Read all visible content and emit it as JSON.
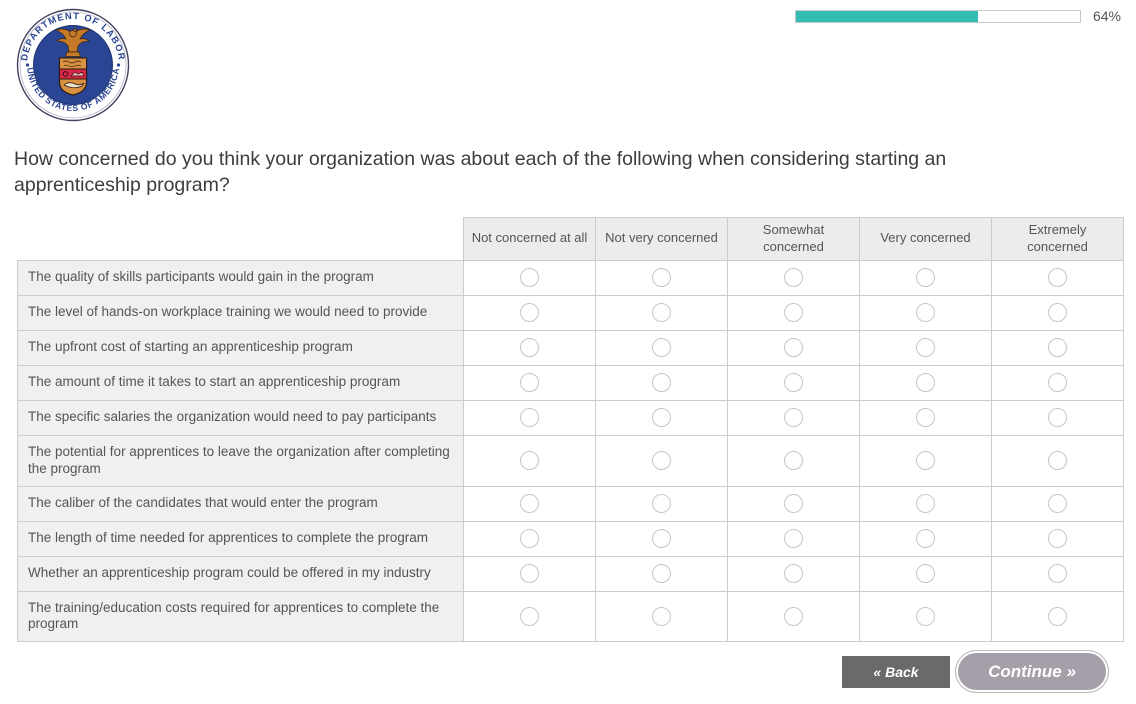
{
  "header": {
    "seal": {
      "alt_name": "us-department-of-labor-seal",
      "ring_text_top": "DEPARTMENT OF LABOR",
      "ring_text_bottom": "UNITED STATES OF AMERICA"
    },
    "progress": {
      "percent": 64,
      "label": "64%"
    }
  },
  "question": {
    "text": "How concerned do you think your organization was about each of the following when considering starting an apprenticeship program?"
  },
  "matrix": {
    "columns": [
      "Not concerned at all",
      "Not very concerned",
      "Somewhat concerned",
      "Very concerned",
      "Extremely concerned"
    ],
    "rows": [
      "The quality of skills participants would gain in the program",
      "The level of hands-on workplace training we would need to provide",
      "The upfront cost of starting an apprenticeship program",
      "The amount of time it takes to start an apprenticeship program",
      "The specific salaries the organization would need to pay participants",
      "The potential for apprentices to leave the organization after completing the program",
      "The caliber of the candidates that would enter the program",
      "The length of time needed for apprentices to complete the program",
      "Whether an apprenticeship program could be offered in my industry",
      "The training/education costs required for apprentices to complete the program"
    ],
    "selected": null
  },
  "footer": {
    "back_label": "« Back",
    "continue_label": "Continue »"
  },
  "colors": {
    "accent_teal": "#33bcb2",
    "seal_navy": "#2a4593",
    "back_button": "#6a6a6a",
    "continue_button": "#a49fa9",
    "table_border": "#cccccc",
    "header_cell_bg": "#ececec",
    "label_cell_bg": "#f0f0f0"
  }
}
